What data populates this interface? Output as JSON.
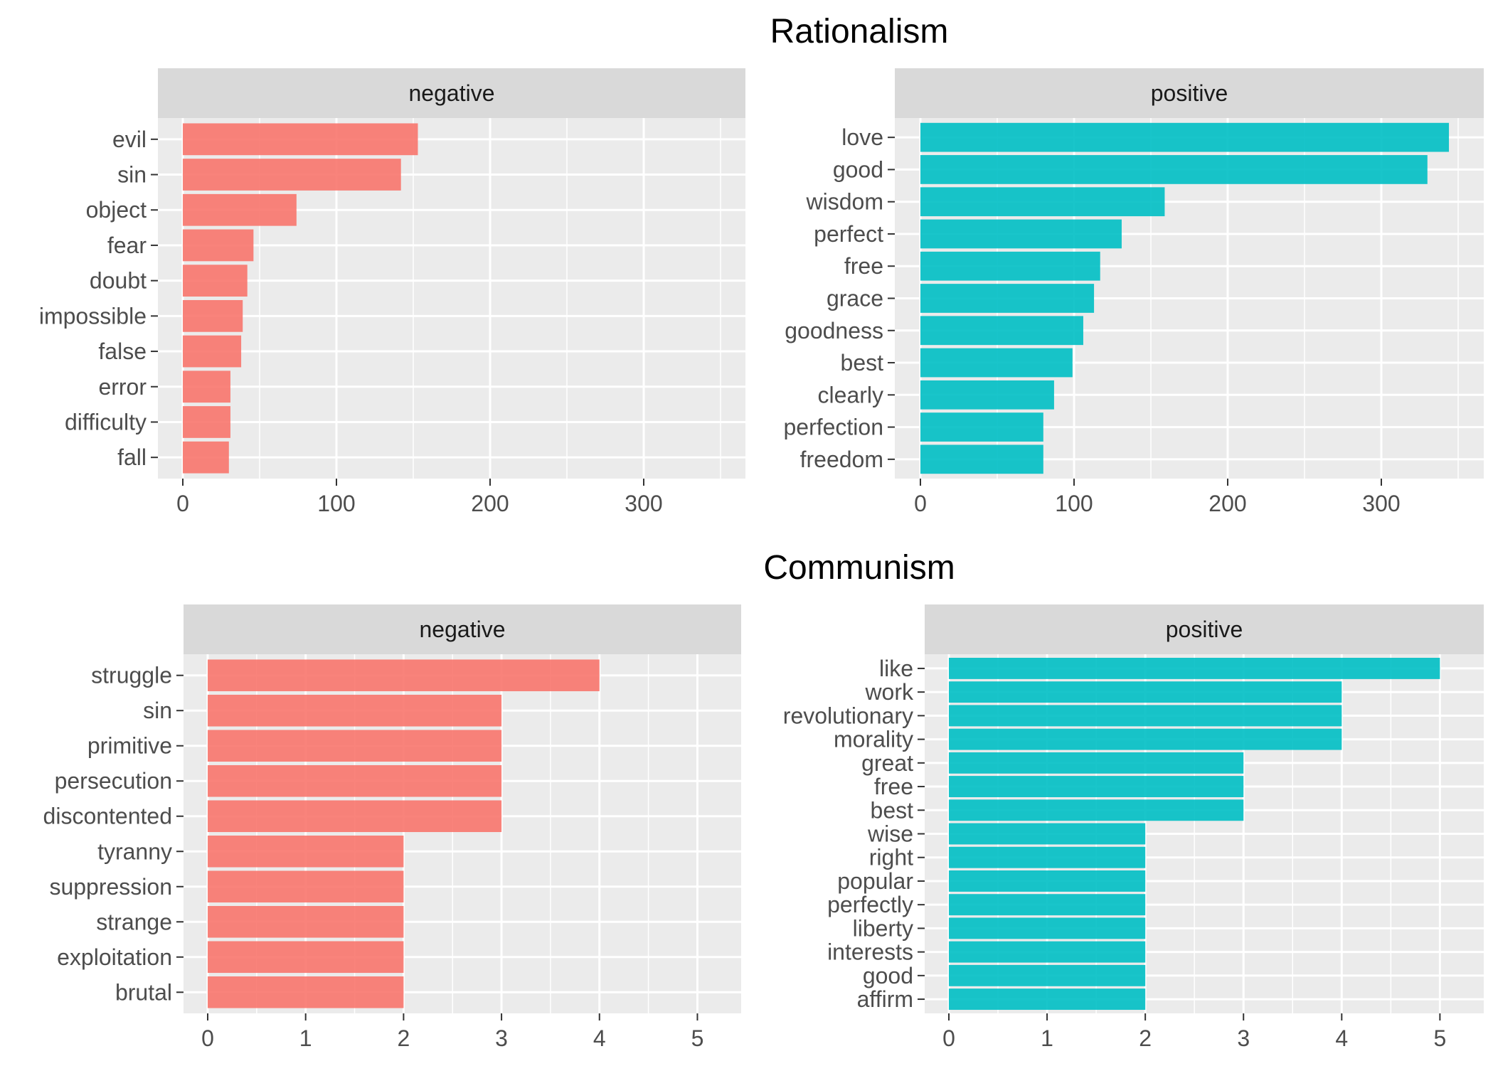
{
  "colors": {
    "negative": "#F8766D",
    "positive": "#00BFC4",
    "panel_bg": "#EBEBEB",
    "strip_bg": "#D9D9D9",
    "grid": "#FFFFFF"
  },
  "chart_data": [
    {
      "title": "Rationalism",
      "panels": [
        {
          "type": "bar",
          "orientation": "horizontal",
          "strip": "negative",
          "color": "#F8766D",
          "categories": [
            "evil",
            "sin",
            "object",
            "fear",
            "doubt",
            "impossible",
            "false",
            "error",
            "difficulty",
            "fall"
          ],
          "values": [
            153,
            142,
            74,
            46,
            42,
            39,
            38,
            31,
            31,
            30
          ],
          "xlim": [
            0,
            350
          ],
          "xticks": [
            0,
            100,
            200,
            300
          ],
          "grid": true
        },
        {
          "type": "bar",
          "orientation": "horizontal",
          "strip": "positive",
          "color": "#00BFC4",
          "categories": [
            "love",
            "good",
            "wisdom",
            "perfect",
            "free",
            "grace",
            "goodness",
            "best",
            "clearly",
            "perfection",
            "freedom"
          ],
          "values": [
            344,
            330,
            159,
            131,
            117,
            113,
            106,
            99,
            87,
            80,
            80
          ],
          "xlim": [
            0,
            350
          ],
          "xticks": [
            0,
            100,
            200,
            300
          ],
          "grid": true
        }
      ]
    },
    {
      "title": "Communism",
      "panels": [
        {
          "type": "bar",
          "orientation": "horizontal",
          "strip": "negative",
          "color": "#F8766D",
          "categories": [
            "struggle",
            "sin",
            "primitive",
            "persecution",
            "discontented",
            "tyranny",
            "suppression",
            "strange",
            "exploitation",
            "brutal"
          ],
          "values": [
            4,
            3,
            3,
            3,
            3,
            2,
            2,
            2,
            2,
            2
          ],
          "xlim": [
            0,
            5.2
          ],
          "xticks": [
            0,
            1,
            2,
            3,
            4,
            5
          ],
          "grid": true
        },
        {
          "type": "bar",
          "orientation": "horizontal",
          "strip": "positive",
          "color": "#00BFC4",
          "categories": [
            "like",
            "work",
            "revolutionary",
            "morality",
            "great",
            "free",
            "best",
            "wise",
            "right",
            "popular",
            "perfectly",
            "liberty",
            "interests",
            "good",
            "affirm"
          ],
          "values": [
            5,
            4,
            4,
            4,
            3,
            3,
            3,
            2,
            2,
            2,
            2,
            2,
            2,
            2,
            2
          ],
          "xlim": [
            0,
            5.2
          ],
          "xticks": [
            0,
            1,
            2,
            3,
            4,
            5
          ],
          "grid": true
        }
      ]
    }
  ]
}
